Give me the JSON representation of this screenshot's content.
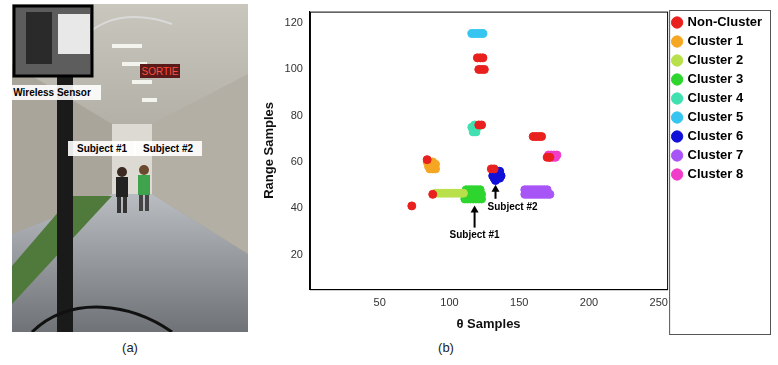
{
  "chart_data": {
    "type": "scatter",
    "caption": "(b)",
    "x_label": "θ Samples",
    "y_label": "Range Samples",
    "xlim": [
      0,
      256
    ],
    "ylim": [
      5,
      125
    ],
    "xticks": [
      50,
      100,
      150,
      200,
      250
    ],
    "yticks": [
      20,
      40,
      60,
      80,
      100,
      120
    ],
    "grid": false,
    "legend": "upper right",
    "marker": "circle",
    "series": [
      {
        "name": "Non-Cluster",
        "color": "#e8201e",
        "values": [
          [
            73,
            41
          ],
          [
            88,
            46
          ],
          [
            84,
            61
          ],
          [
            120,
            105
          ],
          [
            122,
            105
          ],
          [
            124,
            105
          ],
          [
            121,
            100
          ],
          [
            123,
            100
          ],
          [
            125,
            100
          ],
          [
            121,
            76
          ],
          [
            123,
            76
          ],
          [
            130,
            57
          ],
          [
            132,
            57
          ],
          [
            160,
            71
          ],
          [
            162,
            71
          ],
          [
            164,
            71
          ],
          [
            166,
            71
          ],
          [
            170,
            62
          ],
          [
            172,
            62
          ]
        ]
      },
      {
        "name": "Cluster 1",
        "color": "#f5a623",
        "values": [
          [
            84,
            60
          ],
          [
            86,
            60
          ],
          [
            88,
            60
          ],
          [
            85,
            58
          ],
          [
            87,
            58
          ],
          [
            89,
            58
          ],
          [
            86,
            57
          ],
          [
            88,
            57
          ],
          [
            90,
            57
          ],
          [
            90,
            59
          ]
        ]
      },
      {
        "name": "Cluster 2",
        "color": "#b8e04a",
        "values": [
          [
            90,
            46.5
          ],
          [
            92,
            46.5
          ],
          [
            94,
            46.5
          ],
          [
            96,
            46.5
          ],
          [
            98,
            46.5
          ],
          [
            100,
            46.5
          ],
          [
            102,
            46.5
          ],
          [
            104,
            46.5
          ],
          [
            106,
            46.5
          ],
          [
            108,
            46.5
          ],
          [
            110,
            46.5
          ]
        ]
      },
      {
        "name": "Cluster 3",
        "color": "#2ed52e",
        "values": [
          [
            111,
            44
          ],
          [
            113,
            44
          ],
          [
            115,
            44
          ],
          [
            117,
            44
          ],
          [
            119,
            44
          ],
          [
            121,
            44
          ],
          [
            123,
            44
          ],
          [
            111,
            46
          ],
          [
            113,
            46
          ],
          [
            115,
            46
          ],
          [
            117,
            46
          ],
          [
            119,
            46
          ],
          [
            121,
            46
          ],
          [
            123,
            46
          ],
          [
            112,
            48
          ],
          [
            114,
            48
          ],
          [
            116,
            48
          ],
          [
            118,
            48
          ],
          [
            120,
            48
          ],
          [
            122,
            48
          ]
        ]
      },
      {
        "name": "Cluster 4",
        "color": "#40e0b0",
        "values": [
          [
            116,
            75
          ],
          [
            118,
            76
          ],
          [
            120,
            75
          ],
          [
            118,
            74
          ],
          [
            117,
            73
          ],
          [
            119,
            73
          ]
        ]
      },
      {
        "name": "Cluster 5",
        "color": "#36c5f0",
        "values": [
          [
            116,
            115.5
          ],
          [
            118,
            115.5
          ],
          [
            120,
            115.5
          ],
          [
            122,
            115.5
          ],
          [
            124,
            115.5
          ]
        ]
      },
      {
        "name": "Cluster 6",
        "color": "#1010d8",
        "values": [
          [
            131,
            54
          ],
          [
            133,
            55
          ],
          [
            135,
            55
          ],
          [
            137,
            54
          ],
          [
            132,
            53
          ],
          [
            134,
            53
          ],
          [
            136,
            53
          ],
          [
            134,
            56
          ],
          [
            136,
            56
          ],
          [
            133,
            52
          ]
        ]
      },
      {
        "name": "Cluster 7",
        "color": "#a855f7",
        "values": [
          [
            154,
            46
          ],
          [
            156,
            46
          ],
          [
            158,
            46
          ],
          [
            160,
            46
          ],
          [
            162,
            46
          ],
          [
            164,
            46
          ],
          [
            166,
            46
          ],
          [
            168,
            46
          ],
          [
            170,
            46
          ],
          [
            172,
            46
          ],
          [
            154,
            48
          ],
          [
            156,
            48
          ],
          [
            158,
            48
          ],
          [
            160,
            48
          ],
          [
            162,
            48
          ],
          [
            164,
            48
          ],
          [
            166,
            48
          ],
          [
            168,
            48
          ],
          [
            170,
            48
          ]
        ]
      },
      {
        "name": "Cluster 8",
        "color": "#f03cc8",
        "values": [
          [
            171,
            63
          ],
          [
            173,
            63
          ],
          [
            175,
            63
          ],
          [
            177,
            63
          ],
          [
            172,
            62
          ],
          [
            174,
            62
          ],
          [
            176,
            62
          ]
        ]
      }
    ],
    "annotations": [
      {
        "text": "Subject #1",
        "x": 118,
        "y": 42
      },
      {
        "text": "Subject #2",
        "x": 133,
        "y": 51
      }
    ]
  },
  "photo": {
    "caption": "(a)",
    "sign": "SORTIE",
    "labels": [
      "Wireless Sensor",
      "Subject #1",
      "Subject #2"
    ]
  }
}
